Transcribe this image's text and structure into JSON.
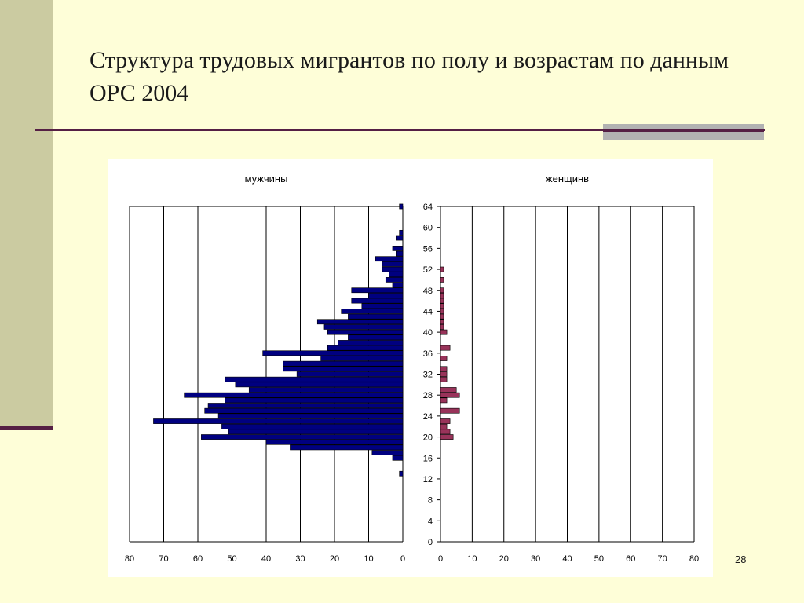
{
  "slide": {
    "title": "Структура трудовых мигрантов по полу и возрастам по данным ОРС 2004",
    "page_number": "28"
  },
  "colors": {
    "background": "#fefed8",
    "accent_bar": "#cbcba1",
    "rule": "#551f44",
    "men_bars": "#000080",
    "women_bars": "#99335a"
  },
  "chart_data": [
    {
      "type": "bar",
      "orientation": "horizontal",
      "title": "мужчины",
      "x_ticks": [
        "80",
        "70",
        "60",
        "50",
        "40",
        "30",
        "20",
        "10",
        "0"
      ],
      "xlim": [
        0,
        80
      ],
      "x_reversed": true,
      "grid": true,
      "ages": [
        64,
        60,
        59,
        58,
        57,
        56,
        55,
        54,
        53,
        52,
        51,
        50,
        49,
        48,
        47,
        46,
        45,
        44,
        43,
        42,
        41,
        40,
        39,
        38,
        37,
        36,
        35,
        34,
        33,
        32,
        31,
        30,
        29,
        28,
        27,
        26,
        25,
        24,
        23,
        22,
        21,
        20,
        19,
        18,
        17,
        16,
        15,
        13
      ],
      "values": [
        1,
        0,
        1,
        2,
        0,
        3,
        2,
        8,
        6,
        6,
        4,
        5,
        3,
        15,
        10,
        15,
        12,
        18,
        16,
        25,
        23,
        22,
        16,
        19,
        22,
        41,
        24,
        35,
        35,
        31,
        52,
        49,
        45,
        64,
        52,
        57,
        58,
        54,
        73,
        53,
        51,
        59,
        40,
        33,
        9,
        3,
        0,
        1
      ]
    },
    {
      "type": "bar",
      "orientation": "horizontal",
      "title": "женщинв",
      "x_ticks": [
        "0",
        "10",
        "20",
        "30",
        "40",
        "50",
        "60",
        "70",
        "80"
      ],
      "xlim": [
        0,
        80
      ],
      "grid": true,
      "y_ticks": [
        "64",
        "60",
        "56",
        "52",
        "48",
        "44",
        "40",
        "36",
        "32",
        "28",
        "24",
        "20",
        "16",
        "12",
        "8",
        "4",
        "0"
      ],
      "ylim": [
        0,
        64
      ],
      "ages": [
        52,
        50,
        48,
        47,
        46,
        45,
        44,
        43,
        42,
        41,
        40,
        37,
        35,
        33,
        32,
        31,
        29,
        28,
        27,
        25,
        23,
        22,
        21,
        20
      ],
      "values": [
        1,
        1,
        1,
        1,
        1,
        1,
        1,
        1,
        1,
        1,
        2,
        3,
        2,
        2,
        2,
        2,
        5,
        6,
        2,
        6,
        3,
        2,
        3,
        4
      ]
    }
  ]
}
